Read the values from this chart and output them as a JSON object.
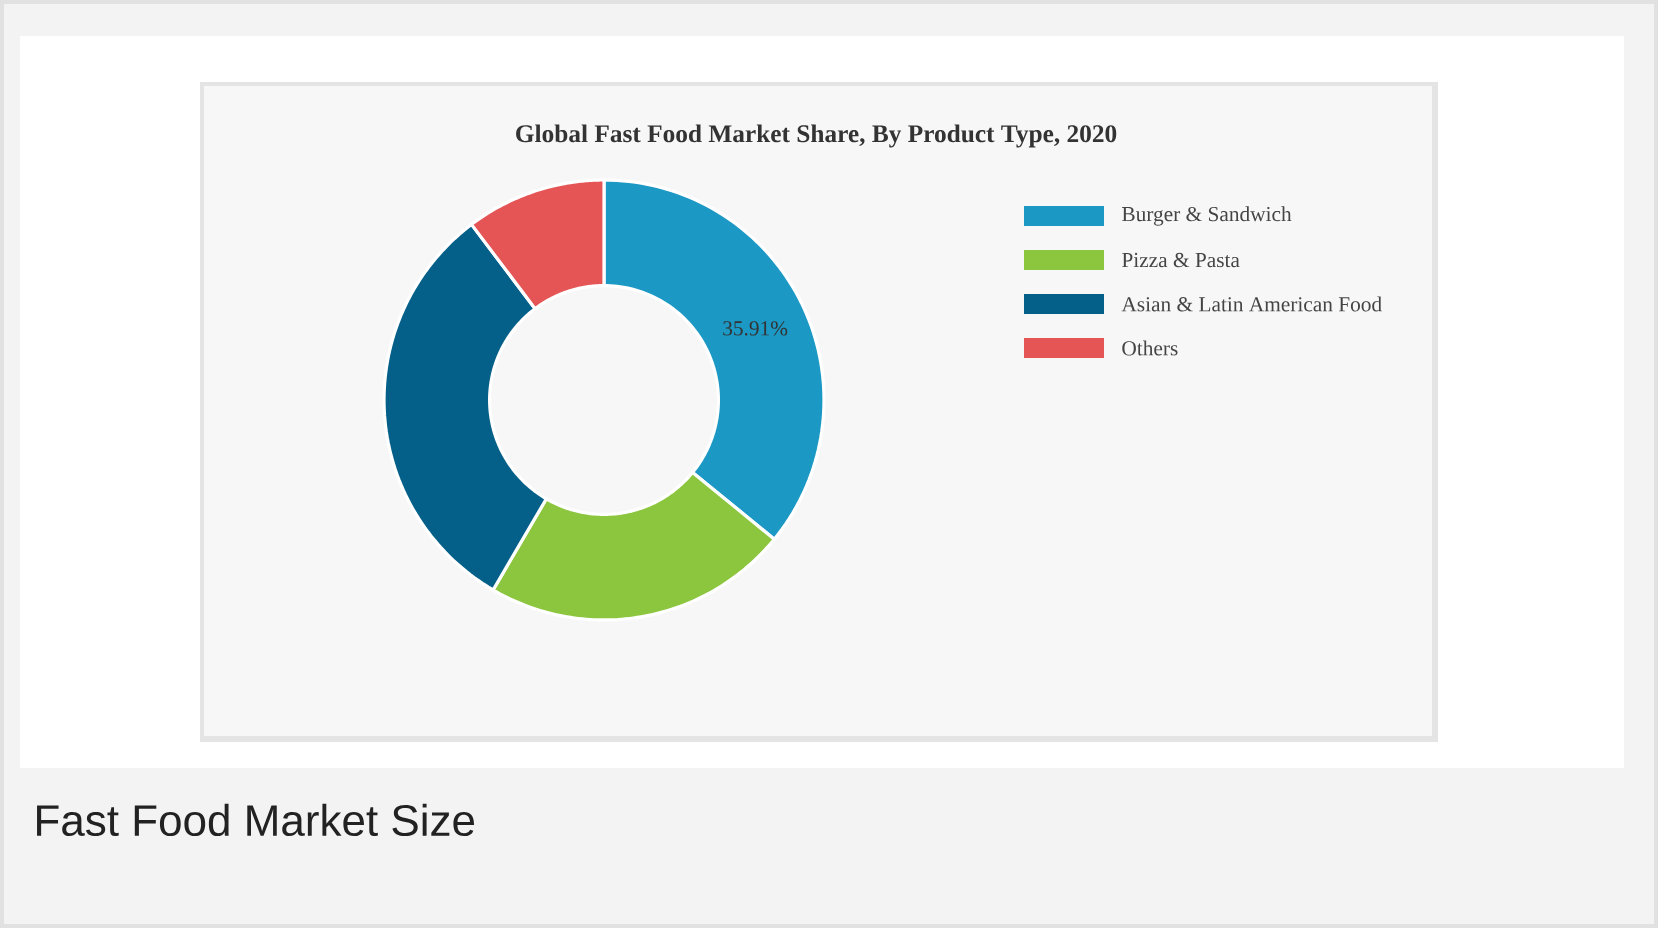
{
  "chart_data": {
    "type": "donut",
    "title": "Global Fast Food Market Share, By Product Type, 2020",
    "categories": [
      "Burger & Sandwich",
      "Pizza & Pasta",
      "Asian & Latin American Food",
      "Others"
    ],
    "values": [
      35.91,
      22.5,
      31.3,
      10.29
    ],
    "colors": [
      "#1b98c4",
      "#8cc63f",
      "#056089",
      "#e55555"
    ],
    "value_labels": [
      "35.91%",
      null,
      null,
      null
    ],
    "legend": "right",
    "annotations": [
      "Fast Food Market Size"
    ]
  }
}
